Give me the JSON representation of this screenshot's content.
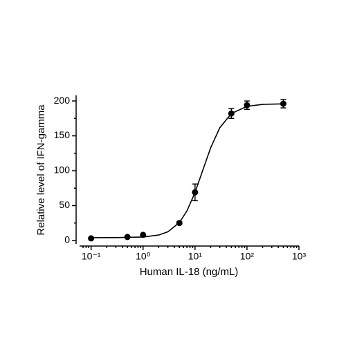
{
  "chart_data": {
    "type": "scatter",
    "xlabel": "Human IL-18 (ng/mL)",
    "ylabel": "Relative level of IFN-gamma",
    "xscale": "log",
    "xlim": [
      0.06,
      1000
    ],
    "ylim": [
      -5,
      208
    ],
    "xticks": [
      {
        "value": 0.1,
        "label": "10⁻¹"
      },
      {
        "value": 1,
        "label": "10⁰"
      },
      {
        "value": 10,
        "label": "10¹"
      },
      {
        "value": 100,
        "label": "10²"
      },
      {
        "value": 1000,
        "label": "10³"
      }
    ],
    "xminor_ticks": [
      0.07,
      0.08,
      0.09,
      0.2,
      0.3,
      0.4,
      0.5,
      0.6,
      0.7,
      0.8,
      0.9,
      2,
      3,
      4,
      5,
      6,
      7,
      8,
      9,
      20,
      30,
      40,
      50,
      60,
      70,
      80,
      90,
      200,
      300,
      400,
      500,
      600,
      700,
      800,
      900
    ],
    "yticks": [
      0,
      50,
      100,
      150,
      200
    ],
    "yminor_ticks": [
      25,
      75,
      125,
      175
    ],
    "points": {
      "color": "#000000",
      "x": [
        0.1,
        0.5,
        1,
        5,
        10,
        50,
        100,
        500
      ],
      "values": [
        3,
        5,
        8,
        25,
        69,
        182,
        194,
        196
      ],
      "errors": [
        1,
        1,
        1,
        2,
        12,
        7,
        6,
        6
      ]
    },
    "curve": {
      "color": "#000000",
      "x": [
        0.1,
        0.3,
        1,
        2,
        3,
        5,
        7,
        10,
        14,
        20,
        30,
        50,
        100,
        200,
        500
      ],
      "values": [
        4.0,
        4.1,
        5.0,
        7.8,
        12.4,
        25.7,
        42.4,
        68.9,
        100,
        132.9,
        161.6,
        182.0,
        192.3,
        195.1,
        195.8
      ]
    }
  }
}
